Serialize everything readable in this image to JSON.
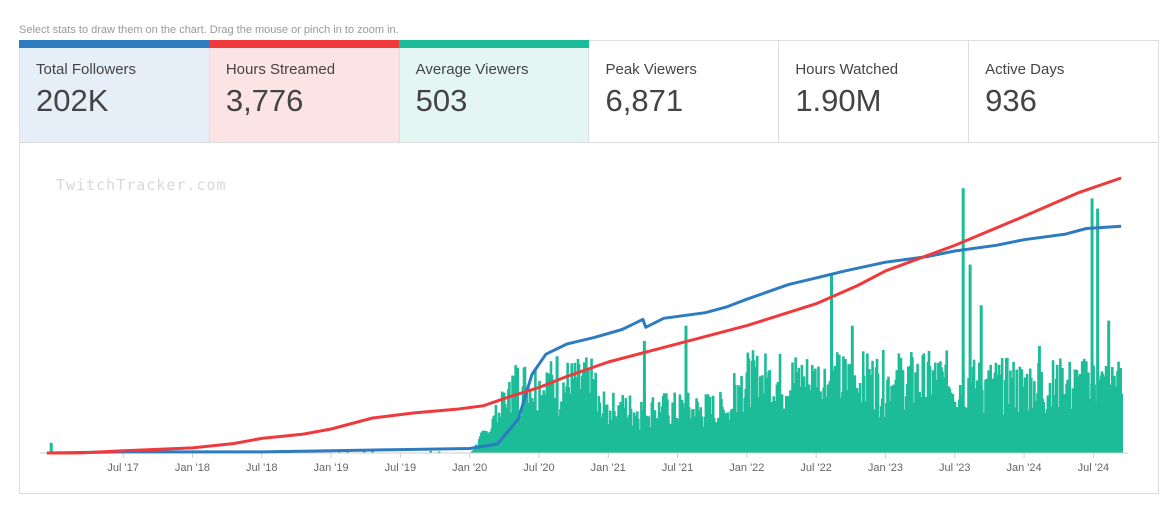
{
  "hint": "Select stats to draw them on the chart. Drag the mouse or pinch in to zoom in.",
  "watermark": "TwitchTracker.com",
  "stats": [
    {
      "label": "Total Followers",
      "value": "202K",
      "bg": "#e6eff8",
      "bar": "#2f7bbf"
    },
    {
      "label": "Hours Streamed",
      "value": "3,776",
      "bg": "#fde4e4",
      "bar": "#f0393c"
    },
    {
      "label": "Average Viewers",
      "value": "503",
      "bg": "#e4f6f1",
      "bar": "#1dbc98"
    },
    {
      "label": "Peak Viewers",
      "value": "6,871",
      "bg": "#ffffff",
      "bar": null
    },
    {
      "label": "Hours Watched",
      "value": "1.90M",
      "bg": "#ffffff",
      "bar": null
    },
    {
      "label": "Active Days",
      "value": "936",
      "bg": "#ffffff",
      "bar": null
    }
  ],
  "chart_data": {
    "type": "line",
    "x_tick_labels": [
      "Jul '17",
      "Jan '18",
      "Jul '18",
      "Jan '19",
      "Jul '19",
      "Jan '20",
      "Jul '20",
      "Jan '21",
      "Jul '21",
      "Jan '22",
      "Jul '22",
      "Jan '23",
      "Jul '23",
      "Jan '24",
      "Jul '24"
    ],
    "x_tick_dates": [
      2017.5,
      2018.0,
      2018.5,
      2019.0,
      2019.5,
      2020.0,
      2020.5,
      2021.0,
      2021.5,
      2022.0,
      2022.5,
      2023.0,
      2023.5,
      2024.0,
      2024.5
    ],
    "xlim": [
      2016.9,
      2024.75
    ],
    "colors": {
      "followers": "#2f7bbf",
      "hours": "#f0393c",
      "viewers": "#1dbc98"
    },
    "grid": false,
    "legend": "stat selector cards above chart",
    "series": [
      {
        "name": "Total Followers",
        "unit": "followers",
        "points": [
          [
            2016.95,
            0
          ],
          [
            2017.5,
            1
          ],
          [
            2018.0,
            1
          ],
          [
            2018.5,
            1
          ],
          [
            2019.0,
            2
          ],
          [
            2019.5,
            3
          ],
          [
            2020.0,
            4
          ],
          [
            2020.2,
            8
          ],
          [
            2020.35,
            30
          ],
          [
            2020.45,
            70
          ],
          [
            2020.55,
            88
          ],
          [
            2020.7,
            97
          ],
          [
            2020.9,
            103
          ],
          [
            2021.1,
            110
          ],
          [
            2021.25,
            119
          ],
          [
            2021.27,
            112
          ],
          [
            2021.4,
            120
          ],
          [
            2021.7,
            125
          ],
          [
            2021.85,
            130
          ],
          [
            2022.0,
            137
          ],
          [
            2022.3,
            150
          ],
          [
            2022.5,
            156
          ],
          [
            2022.7,
            162
          ],
          [
            2023.0,
            170
          ],
          [
            2023.3,
            175
          ],
          [
            2023.5,
            180
          ],
          [
            2023.8,
            185
          ],
          [
            2024.0,
            190
          ],
          [
            2024.3,
            195
          ],
          [
            2024.45,
            200
          ],
          [
            2024.7,
            202
          ]
        ]
      },
      {
        "name": "Hours Streamed",
        "unit": "hours",
        "points": [
          [
            2016.95,
            0
          ],
          [
            2017.2,
            1
          ],
          [
            2017.5,
            30
          ],
          [
            2018.0,
            70
          ],
          [
            2018.3,
            130
          ],
          [
            2018.5,
            200
          ],
          [
            2018.8,
            260
          ],
          [
            2019.0,
            330
          ],
          [
            2019.3,
            480
          ],
          [
            2019.6,
            550
          ],
          [
            2019.9,
            600
          ],
          [
            2020.1,
            650
          ],
          [
            2020.3,
            780
          ],
          [
            2020.5,
            900
          ],
          [
            2020.7,
            1050
          ],
          [
            2021.0,
            1250
          ],
          [
            2021.5,
            1500
          ],
          [
            2022.0,
            1750
          ],
          [
            2022.5,
            2050
          ],
          [
            2022.8,
            2300
          ],
          [
            2023.0,
            2500
          ],
          [
            2023.5,
            2850
          ],
          [
            2024.0,
            3250
          ],
          [
            2024.4,
            3580
          ],
          [
            2024.7,
            3776
          ]
        ]
      },
      {
        "name": "Average Viewers",
        "unit": "viewers per stream",
        "type": "bar",
        "segments": [
          {
            "range": [
              2016.95,
              2020.0
            ],
            "level": 40,
            "density": "sparse"
          },
          {
            "range": [
              2020.0,
              2020.3
            ],
            "level": 600,
            "density": "ramp"
          },
          {
            "range": [
              2020.3,
              2020.9
            ],
            "level": 1400,
            "density": "dense"
          },
          {
            "range": [
              2020.9,
              2021.9
            ],
            "level": 900,
            "density": "dense"
          },
          {
            "range": [
              2021.9,
              2022.9
            ],
            "level": 1500,
            "density": "dense"
          },
          {
            "range": [
              2022.9,
              2023.6
            ],
            "level": 1500,
            "density": "dense"
          },
          {
            "range": [
              2023.6,
              2024.7
            ],
            "level": 1400,
            "density": "dense"
          }
        ],
        "peaks": [
          [
            2016.97,
            200
          ],
          [
            2020.62,
            1900
          ],
          [
            2021.25,
            2200
          ],
          [
            2021.55,
            2500
          ],
          [
            2022.6,
            3500
          ],
          [
            2022.75,
            2500
          ],
          [
            2023.55,
            5200
          ],
          [
            2023.6,
            3700
          ],
          [
            2023.68,
            2900
          ],
          [
            2024.1,
            2100
          ],
          [
            2024.48,
            5000
          ],
          [
            2024.52,
            4800
          ],
          [
            2024.6,
            2600
          ]
        ]
      }
    ]
  }
}
